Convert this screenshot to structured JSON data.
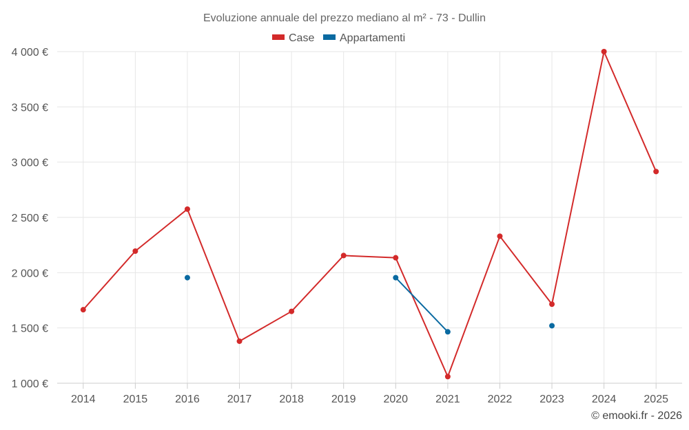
{
  "chart_data": {
    "type": "line",
    "title": "Evoluzione annuale del prezzo mediano al m² - 73 - Dullin",
    "xlabel": "",
    "ylabel": "",
    "categories": [
      "2014",
      "2015",
      "2016",
      "2017",
      "2018",
      "2019",
      "2020",
      "2021",
      "2022",
      "2023",
      "2024",
      "2025"
    ],
    "ylim": [
      1000,
      4000
    ],
    "yticks": [
      1000,
      1500,
      2000,
      2500,
      3000,
      3500,
      4000
    ],
    "ytick_labels": [
      "1 000 €",
      "1 500 €",
      "2 000 €",
      "2 500 €",
      "3 000 €",
      "3 500 €",
      "4 000 €"
    ],
    "grid": true,
    "legend_position": "top-center",
    "series": [
      {
        "name": "Case",
        "color": "#d32a2a",
        "values": [
          1665,
          2195,
          2575,
          1380,
          1650,
          2155,
          2135,
          1060,
          2330,
          1715,
          4000,
          2915
        ]
      },
      {
        "name": "Appartamenti",
        "color": "#0a6aa1",
        "values": [
          null,
          null,
          1955,
          null,
          null,
          null,
          1955,
          1465,
          null,
          1520,
          null,
          null
        ]
      }
    ]
  },
  "credit": "© emooki.fr - 2026"
}
